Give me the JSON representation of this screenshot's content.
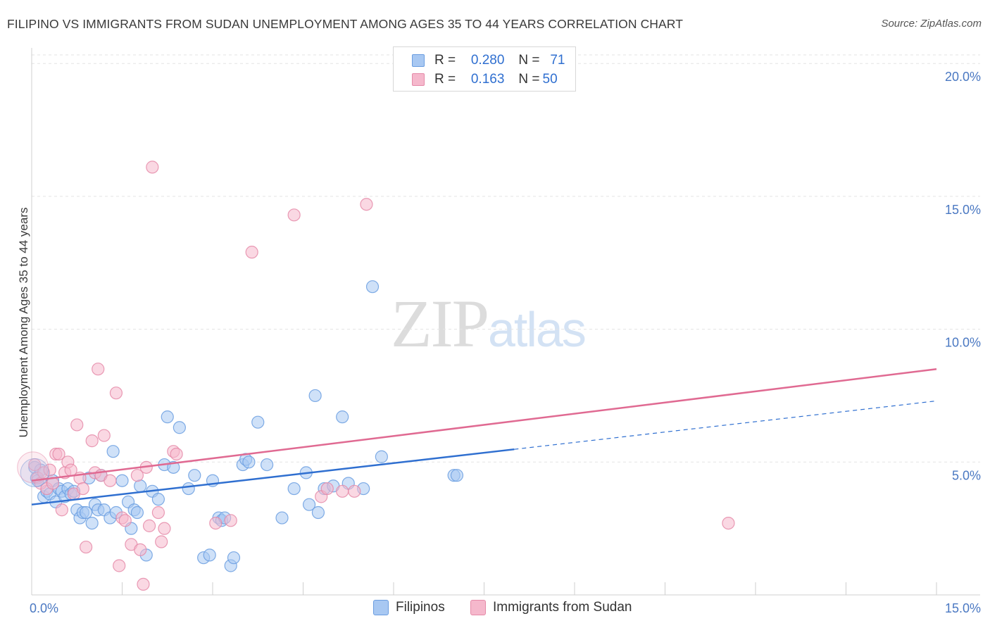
{
  "header": {
    "title": "FILIPINO VS IMMIGRANTS FROM SUDAN UNEMPLOYMENT AMONG AGES 35 TO 44 YEARS CORRELATION CHART",
    "source": "Source: ZipAtlas.com"
  },
  "watermark": {
    "zip": "ZIP",
    "atlas": "atlas"
  },
  "legend": {
    "rows": [
      {
        "r_label": "R =",
        "r_value": "0.280",
        "n_label": "N =",
        "n_value": "71",
        "color": "#a8c8f2"
      },
      {
        "r_label": "R =",
        "r_value": "0.163",
        "n_label": "N =",
        "n_value": "50",
        "color": "#f5b8cc"
      }
    ]
  },
  "chart_data": {
    "type": "scatter",
    "title": "FILIPINO VS IMMIGRANTS FROM SUDAN UNEMPLOYMENT AMONG AGES 35 TO 44 YEARS CORRELATION CHART",
    "xlabel": "",
    "ylabel": "Unemployment Among Ages 35 to 44 years",
    "xlim": [
      0,
      15
    ],
    "ylim": [
      0,
      20.8
    ],
    "x_ticks": [
      {
        "value": 0,
        "label": "0.0%"
      },
      {
        "value": 15,
        "label": "15.0%"
      }
    ],
    "y_ticks": [
      {
        "value": 5,
        "label": "5.0%"
      },
      {
        "value": 10,
        "label": "10.0%"
      },
      {
        "value": 15,
        "label": "15.0%"
      },
      {
        "value": 20,
        "label": "20.0%"
      }
    ],
    "grid": true,
    "legend_position": "bottom",
    "series": [
      {
        "name": "Filipinos",
        "color": "#6a9de0",
        "fill": "#a8c8f2",
        "trend": {
          "x0": 0,
          "y0": 3.4,
          "x_solid_end": 8.0,
          "x1": 15,
          "y1": 7.3
        },
        "points": [
          [
            0.05,
            4.8
          ],
          [
            0.08,
            4.4
          ],
          [
            0.1,
            4.3
          ],
          [
            0.15,
            4.7
          ],
          [
            0.2,
            3.7
          ],
          [
            0.25,
            3.9
          ],
          [
            0.3,
            3.8
          ],
          [
            0.35,
            4.3
          ],
          [
            0.4,
            3.5
          ],
          [
            0.45,
            4.0
          ],
          [
            0.5,
            3.9
          ],
          [
            0.55,
            3.7
          ],
          [
            0.6,
            4.0
          ],
          [
            0.65,
            3.8
          ],
          [
            0.7,
            3.9
          ],
          [
            0.75,
            3.2
          ],
          [
            0.8,
            2.9
          ],
          [
            0.85,
            3.1
          ],
          [
            0.9,
            3.1
          ],
          [
            0.95,
            4.4
          ],
          [
            1.0,
            2.7
          ],
          [
            1.05,
            3.4
          ],
          [
            1.1,
            3.2
          ],
          [
            1.15,
            4.5
          ],
          [
            1.2,
            3.2
          ],
          [
            1.3,
            2.9
          ],
          [
            1.35,
            5.4
          ],
          [
            1.4,
            3.1
          ],
          [
            1.5,
            4.3
          ],
          [
            1.6,
            3.5
          ],
          [
            1.65,
            2.5
          ],
          [
            1.7,
            3.2
          ],
          [
            1.75,
            3.1
          ],
          [
            1.8,
            4.1
          ],
          [
            1.9,
            1.5
          ],
          [
            2.0,
            3.9
          ],
          [
            2.1,
            3.6
          ],
          [
            2.2,
            4.9
          ],
          [
            2.25,
            6.7
          ],
          [
            2.35,
            4.8
          ],
          [
            2.45,
            6.3
          ],
          [
            2.6,
            4.0
          ],
          [
            2.7,
            4.5
          ],
          [
            2.85,
            1.4
          ],
          [
            2.95,
            1.5
          ],
          [
            3.0,
            4.3
          ],
          [
            3.1,
            2.9
          ],
          [
            3.15,
            2.8
          ],
          [
            3.2,
            2.9
          ],
          [
            3.3,
            1.1
          ],
          [
            3.35,
            1.4
          ],
          [
            3.5,
            4.9
          ],
          [
            3.55,
            5.1
          ],
          [
            3.6,
            5.0
          ],
          [
            3.75,
            6.5
          ],
          [
            3.9,
            4.9
          ],
          [
            4.15,
            2.9
          ],
          [
            4.35,
            4.0
          ],
          [
            4.55,
            4.6
          ],
          [
            4.6,
            3.4
          ],
          [
            4.7,
            7.5
          ],
          [
            4.75,
            3.1
          ],
          [
            4.85,
            4.0
          ],
          [
            5.0,
            4.1
          ],
          [
            5.15,
            6.7
          ],
          [
            5.25,
            4.2
          ],
          [
            5.5,
            4.0
          ],
          [
            5.65,
            11.6
          ],
          [
            5.8,
            5.2
          ],
          [
            7.0,
            4.5
          ],
          [
            7.05,
            4.5
          ]
        ]
      },
      {
        "name": "Immigrants from Sudan",
        "color": "#e58aa8",
        "fill": "#f5b8cc",
        "trend": {
          "x0": 0,
          "y0": 4.3,
          "x1": 15,
          "y1": 8.5
        },
        "points": [
          [
            0.05,
            4.9
          ],
          [
            0.1,
            4.4
          ],
          [
            0.15,
            4.2
          ],
          [
            0.2,
            4.6
          ],
          [
            0.25,
            4.0
          ],
          [
            0.3,
            4.7
          ],
          [
            0.35,
            4.2
          ],
          [
            0.4,
            5.3
          ],
          [
            0.45,
            5.3
          ],
          [
            0.5,
            3.2
          ],
          [
            0.55,
            4.6
          ],
          [
            0.6,
            5.0
          ],
          [
            0.65,
            4.7
          ],
          [
            0.7,
            3.8
          ],
          [
            0.75,
            6.4
          ],
          [
            0.8,
            4.4
          ],
          [
            0.85,
            4.0
          ],
          [
            0.9,
            1.8
          ],
          [
            1.0,
            5.8
          ],
          [
            1.05,
            4.6
          ],
          [
            1.1,
            8.5
          ],
          [
            1.15,
            4.5
          ],
          [
            1.2,
            6.0
          ],
          [
            1.3,
            4.3
          ],
          [
            1.4,
            7.6
          ],
          [
            1.45,
            1.1
          ],
          [
            1.5,
            2.9
          ],
          [
            1.55,
            2.8
          ],
          [
            1.65,
            1.9
          ],
          [
            1.75,
            4.5
          ],
          [
            1.8,
            1.7
          ],
          [
            1.85,
            0.4
          ],
          [
            1.9,
            4.8
          ],
          [
            1.95,
            2.6
          ],
          [
            2.0,
            16.1
          ],
          [
            2.1,
            3.1
          ],
          [
            2.15,
            2.0
          ],
          [
            2.2,
            2.5
          ],
          [
            2.35,
            5.4
          ],
          [
            2.4,
            5.3
          ],
          [
            3.05,
            2.7
          ],
          [
            3.3,
            2.8
          ],
          [
            3.65,
            12.9
          ],
          [
            4.35,
            14.3
          ],
          [
            4.8,
            3.7
          ],
          [
            4.9,
            4.0
          ],
          [
            5.15,
            3.9
          ],
          [
            5.35,
            3.9
          ],
          [
            5.55,
            14.7
          ],
          [
            11.55,
            2.7
          ]
        ]
      }
    ]
  }
}
